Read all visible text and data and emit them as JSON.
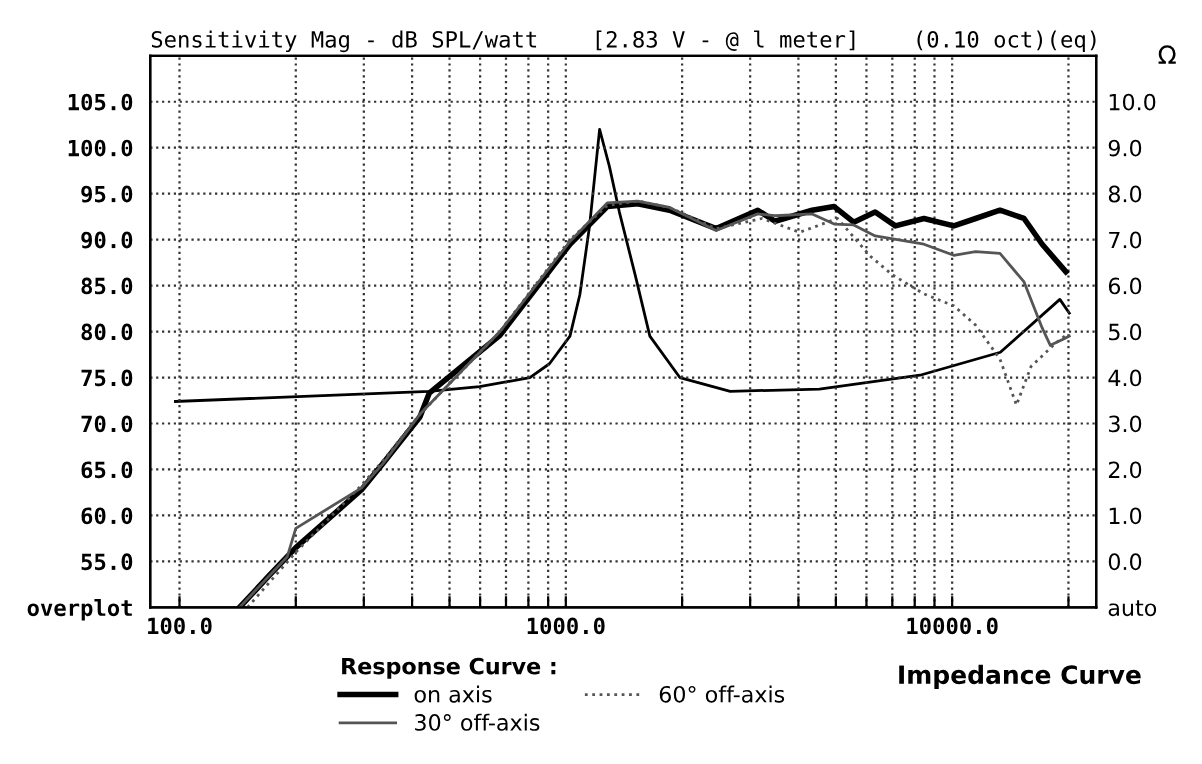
{
  "chart_data": {
    "type": "line",
    "title": "Sensitivity Mag - dB SPL/watt    [2.83 V - @ l meter]    (0.10 oct)(eq)",
    "y2label": "Ω",
    "legend_title": "Response Curve :",
    "annotations": [
      "Impedance Curve"
    ],
    "log": "x",
    "grid": true,
    "legend": "bottom",
    "marker": "none",
    "xlim": [
      84,
      23600
    ],
    "ylim": [
      50,
      110
    ],
    "y2lim": [
      -1,
      11
    ],
    "xticks": [
      {
        "value": 100,
        "label": "100.0"
      },
      {
        "value": 200,
        "label": null
      },
      {
        "value": 300,
        "label": null
      },
      {
        "value": 400,
        "label": null
      },
      {
        "value": 500,
        "label": null
      },
      {
        "value": 600,
        "label": null
      },
      {
        "value": 700,
        "label": null
      },
      {
        "value": 800,
        "label": null
      },
      {
        "value": 900,
        "label": null
      },
      {
        "value": 1000,
        "label": "1000.0"
      },
      {
        "value": 2000,
        "label": null
      },
      {
        "value": 3000,
        "label": null
      },
      {
        "value": 4000,
        "label": null
      },
      {
        "value": 5000,
        "label": null
      },
      {
        "value": 6000,
        "label": null
      },
      {
        "value": 7000,
        "label": null
      },
      {
        "value": 8000,
        "label": null
      },
      {
        "value": 9000,
        "label": null
      },
      {
        "value": 10000,
        "label": "10000.0"
      },
      {
        "value": 20000,
        "label": null
      }
    ],
    "yticks": [
      {
        "value": 50,
        "label": "overplot"
      },
      {
        "value": 55,
        "label": "55.0"
      },
      {
        "value": 60,
        "label": "60.0"
      },
      {
        "value": 65,
        "label": "65.0"
      },
      {
        "value": 70,
        "label": "70.0"
      },
      {
        "value": 75,
        "label": "75.0"
      },
      {
        "value": 80,
        "label": "80.0"
      },
      {
        "value": 85,
        "label": "85.0"
      },
      {
        "value": 90,
        "label": "90.0"
      },
      {
        "value": 95,
        "label": "95.0"
      },
      {
        "value": 100,
        "label": "100.0"
      },
      {
        "value": 105,
        "label": "105.0"
      }
    ],
    "y2ticks": [
      {
        "value": -1,
        "label": "auto"
      },
      {
        "value": 0,
        "label": "0.0"
      },
      {
        "value": 1,
        "label": "1.0"
      },
      {
        "value": 2,
        "label": "2.0"
      },
      {
        "value": 3,
        "label": "3.0"
      },
      {
        "value": 4,
        "label": "4.0"
      },
      {
        "value": 5,
        "label": "5.0"
      },
      {
        "value": 6,
        "label": "6.0"
      },
      {
        "value": 7,
        "label": "7.0"
      },
      {
        "value": 8,
        "label": "8.0"
      },
      {
        "value": 9,
        "label": "9.0"
      },
      {
        "value": 10,
        "label": "10.0"
      }
    ],
    "series": [
      {
        "name": "on axis",
        "color": "#000000",
        "line_style": "solid",
        "x": [
          143,
          171,
          200,
          296,
          337,
          419,
          443,
          675,
          1025,
          1280,
          1535,
          1855,
          2450,
          3140,
          3480,
          4340,
          4950,
          5560,
          6320,
          7130,
          8450,
          10100,
          11500,
          13300,
          15350,
          17100,
          19700
        ],
        "values": [
          50,
          53.5,
          56.5,
          62.8,
          65.7,
          70.7,
          73.3,
          79.6,
          89.5,
          93.6,
          93.9,
          93.2,
          91.2,
          93.2,
          92.0,
          93.2,
          93.6,
          91.9,
          93.0,
          91.5,
          92.3,
          91.5,
          92.3,
          93.2,
          92.3,
          89.5,
          86.5
        ]
      },
      {
        "name": "30° off-axis",
        "color": "#555555",
        "line_style": "solid",
        "x": [
          143,
          190,
          200,
          296,
          337,
          419,
          675,
          1025,
          1280,
          1535,
          1855,
          2450,
          3140,
          3480,
          4340,
          4950,
          5560,
          6320,
          8450,
          10100,
          11500,
          13300,
          15350,
          17100,
          17950,
          19250,
          20100
        ],
        "values": [
          50,
          55.5,
          58.6,
          63,
          65.7,
          71,
          80,
          89.8,
          94,
          94.2,
          93.5,
          91,
          92.8,
          92.6,
          92.8,
          91.7,
          91.6,
          90.4,
          89.5,
          88.3,
          88.7,
          88.5,
          85.4,
          80.4,
          78.5,
          79.1,
          79.5
        ]
      },
      {
        "name": "60° off-axis",
        "color": "#555555",
        "line_style": "dotted",
        "x": [
          150,
          200,
          296,
          337,
          419,
          675,
          1025,
          1280,
          1535,
          1855,
          2450,
          3220,
          4030,
          5050,
          6140,
          6990,
          8450,
          10100,
          11500,
          13300,
          14670,
          16000,
          18480,
          19700
        ],
        "values": [
          50,
          56,
          63.3,
          66,
          71,
          80,
          90,
          93.7,
          94.2,
          93.5,
          91.2,
          92.3,
          90.8,
          92.3,
          88.2,
          86.2,
          84.1,
          82.8,
          80.7,
          77,
          72,
          76.2,
          78.7,
          79.6
        ]
      },
      {
        "color": "#000000",
        "line_style": "solid",
        "axis": "y2",
        "x": [
          97.6,
          443,
          598,
          807,
          907,
          1025,
          1087,
          1152,
          1223,
          1296,
          1376,
          1515,
          1650,
          1973,
          2664,
          4533,
          8255,
          13330,
          19000,
          20100
        ],
        "values": [
          3.48,
          3.7,
          3.8,
          4.0,
          4.3,
          4.9,
          5.8,
          7.3,
          9.4,
          8.6,
          7.6,
          6.2,
          4.9,
          4.0,
          3.7,
          3.75,
          4.05,
          4.55,
          5.7,
          5.4
        ]
      }
    ]
  }
}
